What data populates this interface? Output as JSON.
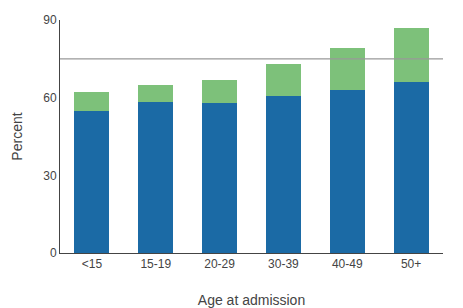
{
  "chart_data": {
    "type": "bar",
    "stacked": true,
    "categories": [
      "<15",
      "15-19",
      "20-29",
      "30-39",
      "40-49",
      "50+"
    ],
    "series": [
      {
        "color": "#1B6AA5",
        "values": [
          55,
          58.5,
          58,
          60.5,
          63,
          66
        ]
      },
      {
        "color": "#7DC17A",
        "values": [
          7,
          6.5,
          9,
          12.5,
          16,
          21
        ]
      }
    ],
    "hline": 75,
    "xlabel": "Age at admission",
    "ylabel": "Percent",
    "ylim": [
      0,
      90
    ],
    "yticks": [
      0,
      30,
      60,
      90
    ],
    "grid": false
  }
}
